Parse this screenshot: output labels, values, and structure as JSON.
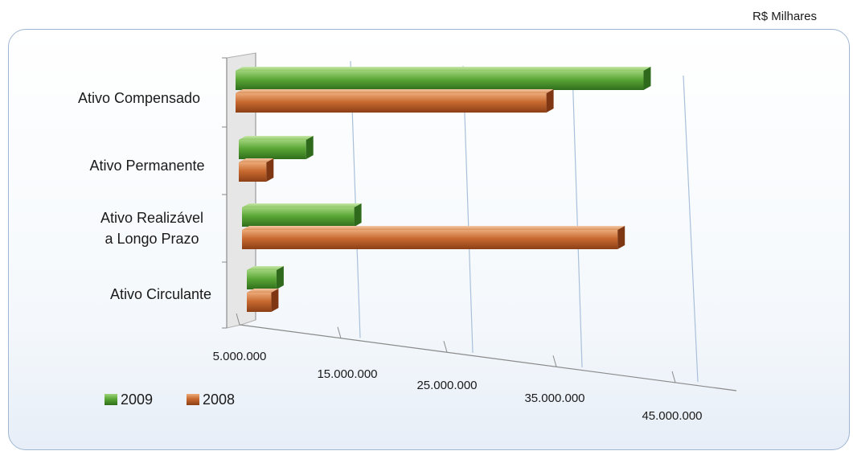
{
  "unit_label": "R$ Milhares",
  "chart_data": {
    "type": "bar",
    "orientation": "horizontal",
    "three_d": true,
    "categories": [
      "Ativo Compensado",
      "Ativo Permanente",
      "Ativo Realizável a Longo Prazo",
      "Ativo Circulante"
    ],
    "category_label_lines": [
      [
        "Ativo Compensado"
      ],
      [
        "Ativo Permanente"
      ],
      [
        "Ativo Realizável",
        "a Longo Prazo"
      ],
      [
        "Ativo Circulante"
      ]
    ],
    "series": [
      {
        "name": "2009",
        "color": "#4e9a2e",
        "values": [
          42500000,
          9900000,
          14200000,
          6300000
        ]
      },
      {
        "name": "2008",
        "color": "#c0622a",
        "values": [
          33200000,
          6100000,
          39400000,
          5800000
        ]
      }
    ],
    "x_ticks": [
      5000000,
      15000000,
      25000000,
      35000000,
      45000000
    ],
    "x_tick_labels": [
      "5.000.000",
      "15.000.000",
      "25.000.000",
      "35.000.000",
      "45.000.000"
    ],
    "xlim": [
      5000000,
      45000000
    ],
    "xlabel": "",
    "ylabel": "",
    "grid": true,
    "legend_position": "bottom-left"
  }
}
